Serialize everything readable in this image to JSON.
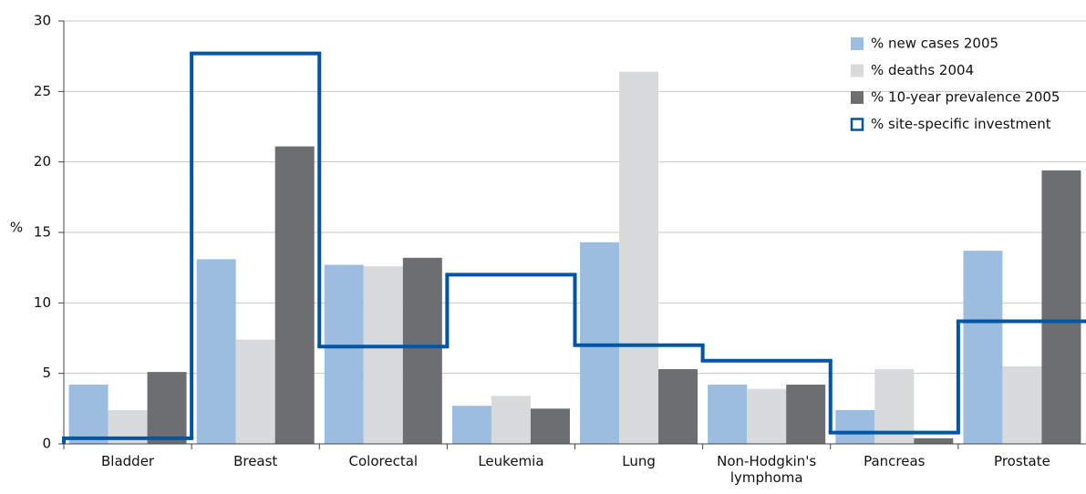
{
  "chart_data": {
    "type": "bar",
    "categories": [
      "Bladder",
      "Breast",
      "Colorectal",
      "Leukemia",
      "Lung",
      "Non-Hodgkin's lymphoma",
      "Pancreas",
      "Prostate"
    ],
    "y_label": "%",
    "series": [
      {
        "name": "% new cases 2005",
        "color": "#9dbde0",
        "values": [
          4.2,
          13.1,
          12.7,
          2.7,
          14.3,
          4.2,
          2.4,
          13.7
        ]
      },
      {
        "name": "% deaths 2004",
        "color": "#d9dadc",
        "values": [
          2.4,
          7.4,
          12.6,
          3.4,
          26.4,
          3.9,
          5.3,
          5.5
        ]
      },
      {
        "name": "% 10-year prevalence 2005",
        "color": "#6d6e71",
        "values": [
          5.1,
          21.1,
          13.2,
          2.5,
          5.3,
          4.2,
          0.4,
          19.4
        ]
      },
      {
        "name": "% site-specific investment",
        "color": "#0055a5",
        "kind": "step",
        "values": [
          0.4,
          27.7,
          6.9,
          12.0,
          7.0,
          5.9,
          0.8,
          8.7
        ]
      }
    ],
    "ylim": [
      0,
      30
    ],
    "yticks": [
      0,
      5,
      10,
      15,
      20,
      25,
      30
    ],
    "grid": true,
    "legend": "upper right"
  }
}
